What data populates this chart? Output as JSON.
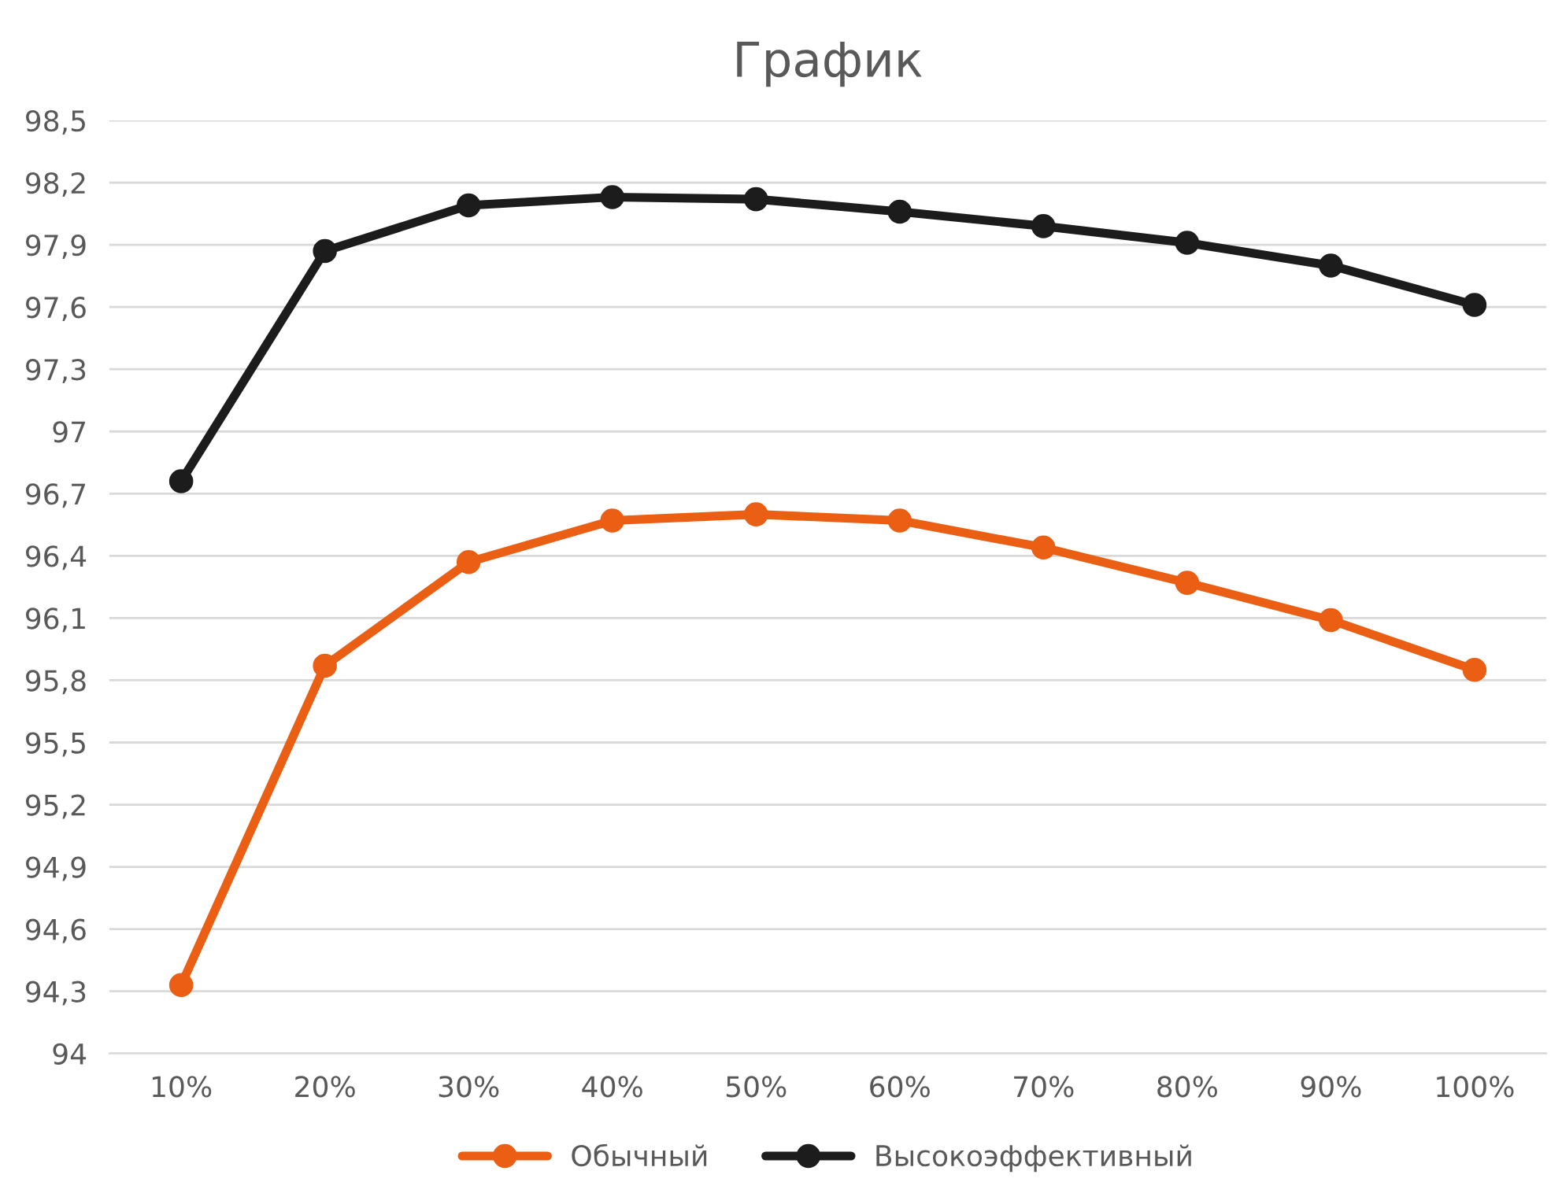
{
  "chart_data": {
    "type": "line",
    "title": "График",
    "categories": [
      "10%",
      "20%",
      "30%",
      "40%",
      "50%",
      "60%",
      "70%",
      "80%",
      "90%",
      "100%"
    ],
    "series": [
      {
        "name": "Обычный",
        "color": "#ea5f14",
        "values": [
          94.33,
          95.87,
          96.37,
          96.57,
          96.6,
          96.57,
          96.44,
          96.27,
          96.09,
          95.85
        ]
      },
      {
        "name": "Высокоэффективный",
        "color": "#1c1c1c",
        "values": [
          96.76,
          97.87,
          98.09,
          98.13,
          98.12,
          98.06,
          97.99,
          97.91,
          97.8,
          97.61
        ]
      }
    ],
    "ylim": [
      94,
      98.5
    ],
    "yticks": [
      94,
      {
        "value": 94.3,
        "label": "94,3"
      },
      {
        "value": 94.6,
        "label": "94,6"
      },
      {
        "value": 94.9,
        "label": "94,9"
      },
      {
        "value": 95.2,
        "label": "95,2"
      },
      {
        "value": 95.5,
        "label": "95,5"
      },
      {
        "value": 95.8,
        "label": "95,8"
      },
      {
        "value": 96.1,
        "label": "96,1"
      },
      {
        "value": 96.4,
        "label": "96,4"
      },
      {
        "value": 96.7,
        "label": "96,7"
      },
      97,
      {
        "value": 97.3,
        "label": "97,3"
      },
      {
        "value": 97.6,
        "label": "97,6"
      },
      {
        "value": 97.9,
        "label": "97,9"
      },
      {
        "value": 98.2,
        "label": "98,2"
      },
      {
        "value": 98.5,
        "label": "98,5"
      }
    ],
    "grid": "y",
    "legend": "bottom",
    "marker": "circle",
    "line_style": "solid"
  }
}
